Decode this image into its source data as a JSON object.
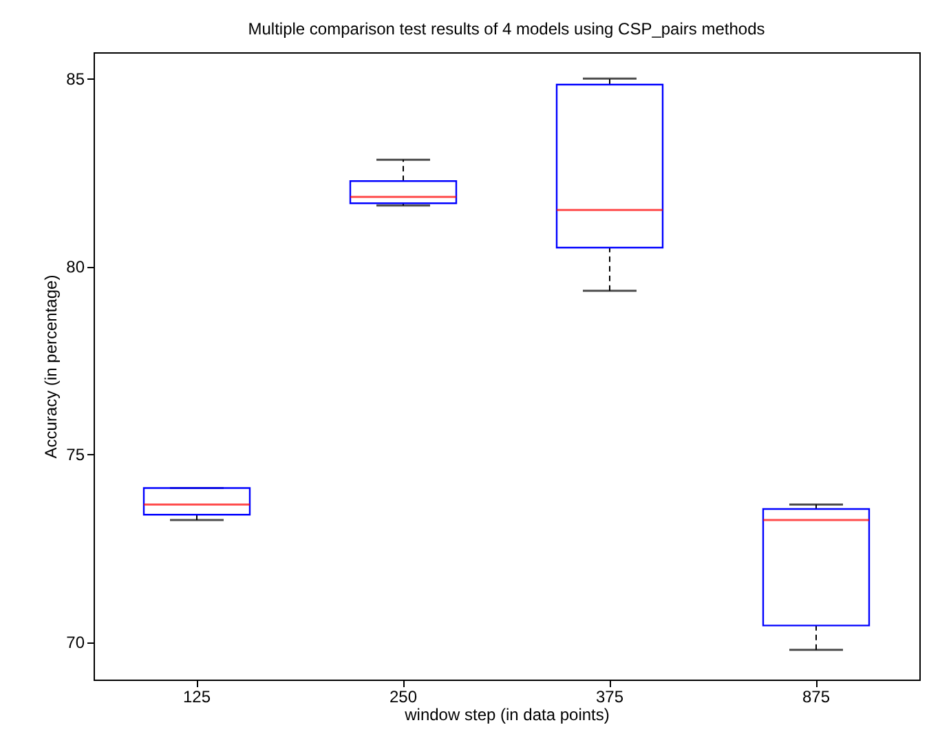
{
  "chart_data": {
    "type": "box",
    "title": "Multiple comparison test results of 4 models using CSP_pairs methods",
    "xlabel": "window step (in data points)",
    "ylabel": "Accuracy (in percentage)",
    "categories": [
      "125",
      "250",
      "375",
      "875"
    ],
    "boxes": [
      {
        "low": 73.25,
        "q1": 73.39,
        "median": 73.66,
        "q3": 74.1,
        "high": 74.1
      },
      {
        "low": 81.62,
        "q1": 81.68,
        "median": 81.85,
        "q3": 82.27,
        "high": 82.84
      },
      {
        "low": 79.35,
        "q1": 80.5,
        "median": 81.5,
        "q3": 84.84,
        "high": 85.0
      },
      {
        "low": 69.79,
        "q1": 70.44,
        "median": 73.25,
        "q3": 73.54,
        "high": 73.66
      }
    ],
    "ylim": [
      69,
      85.7
    ],
    "yticks": [
      70,
      75,
      80,
      85
    ],
    "grid": false
  }
}
